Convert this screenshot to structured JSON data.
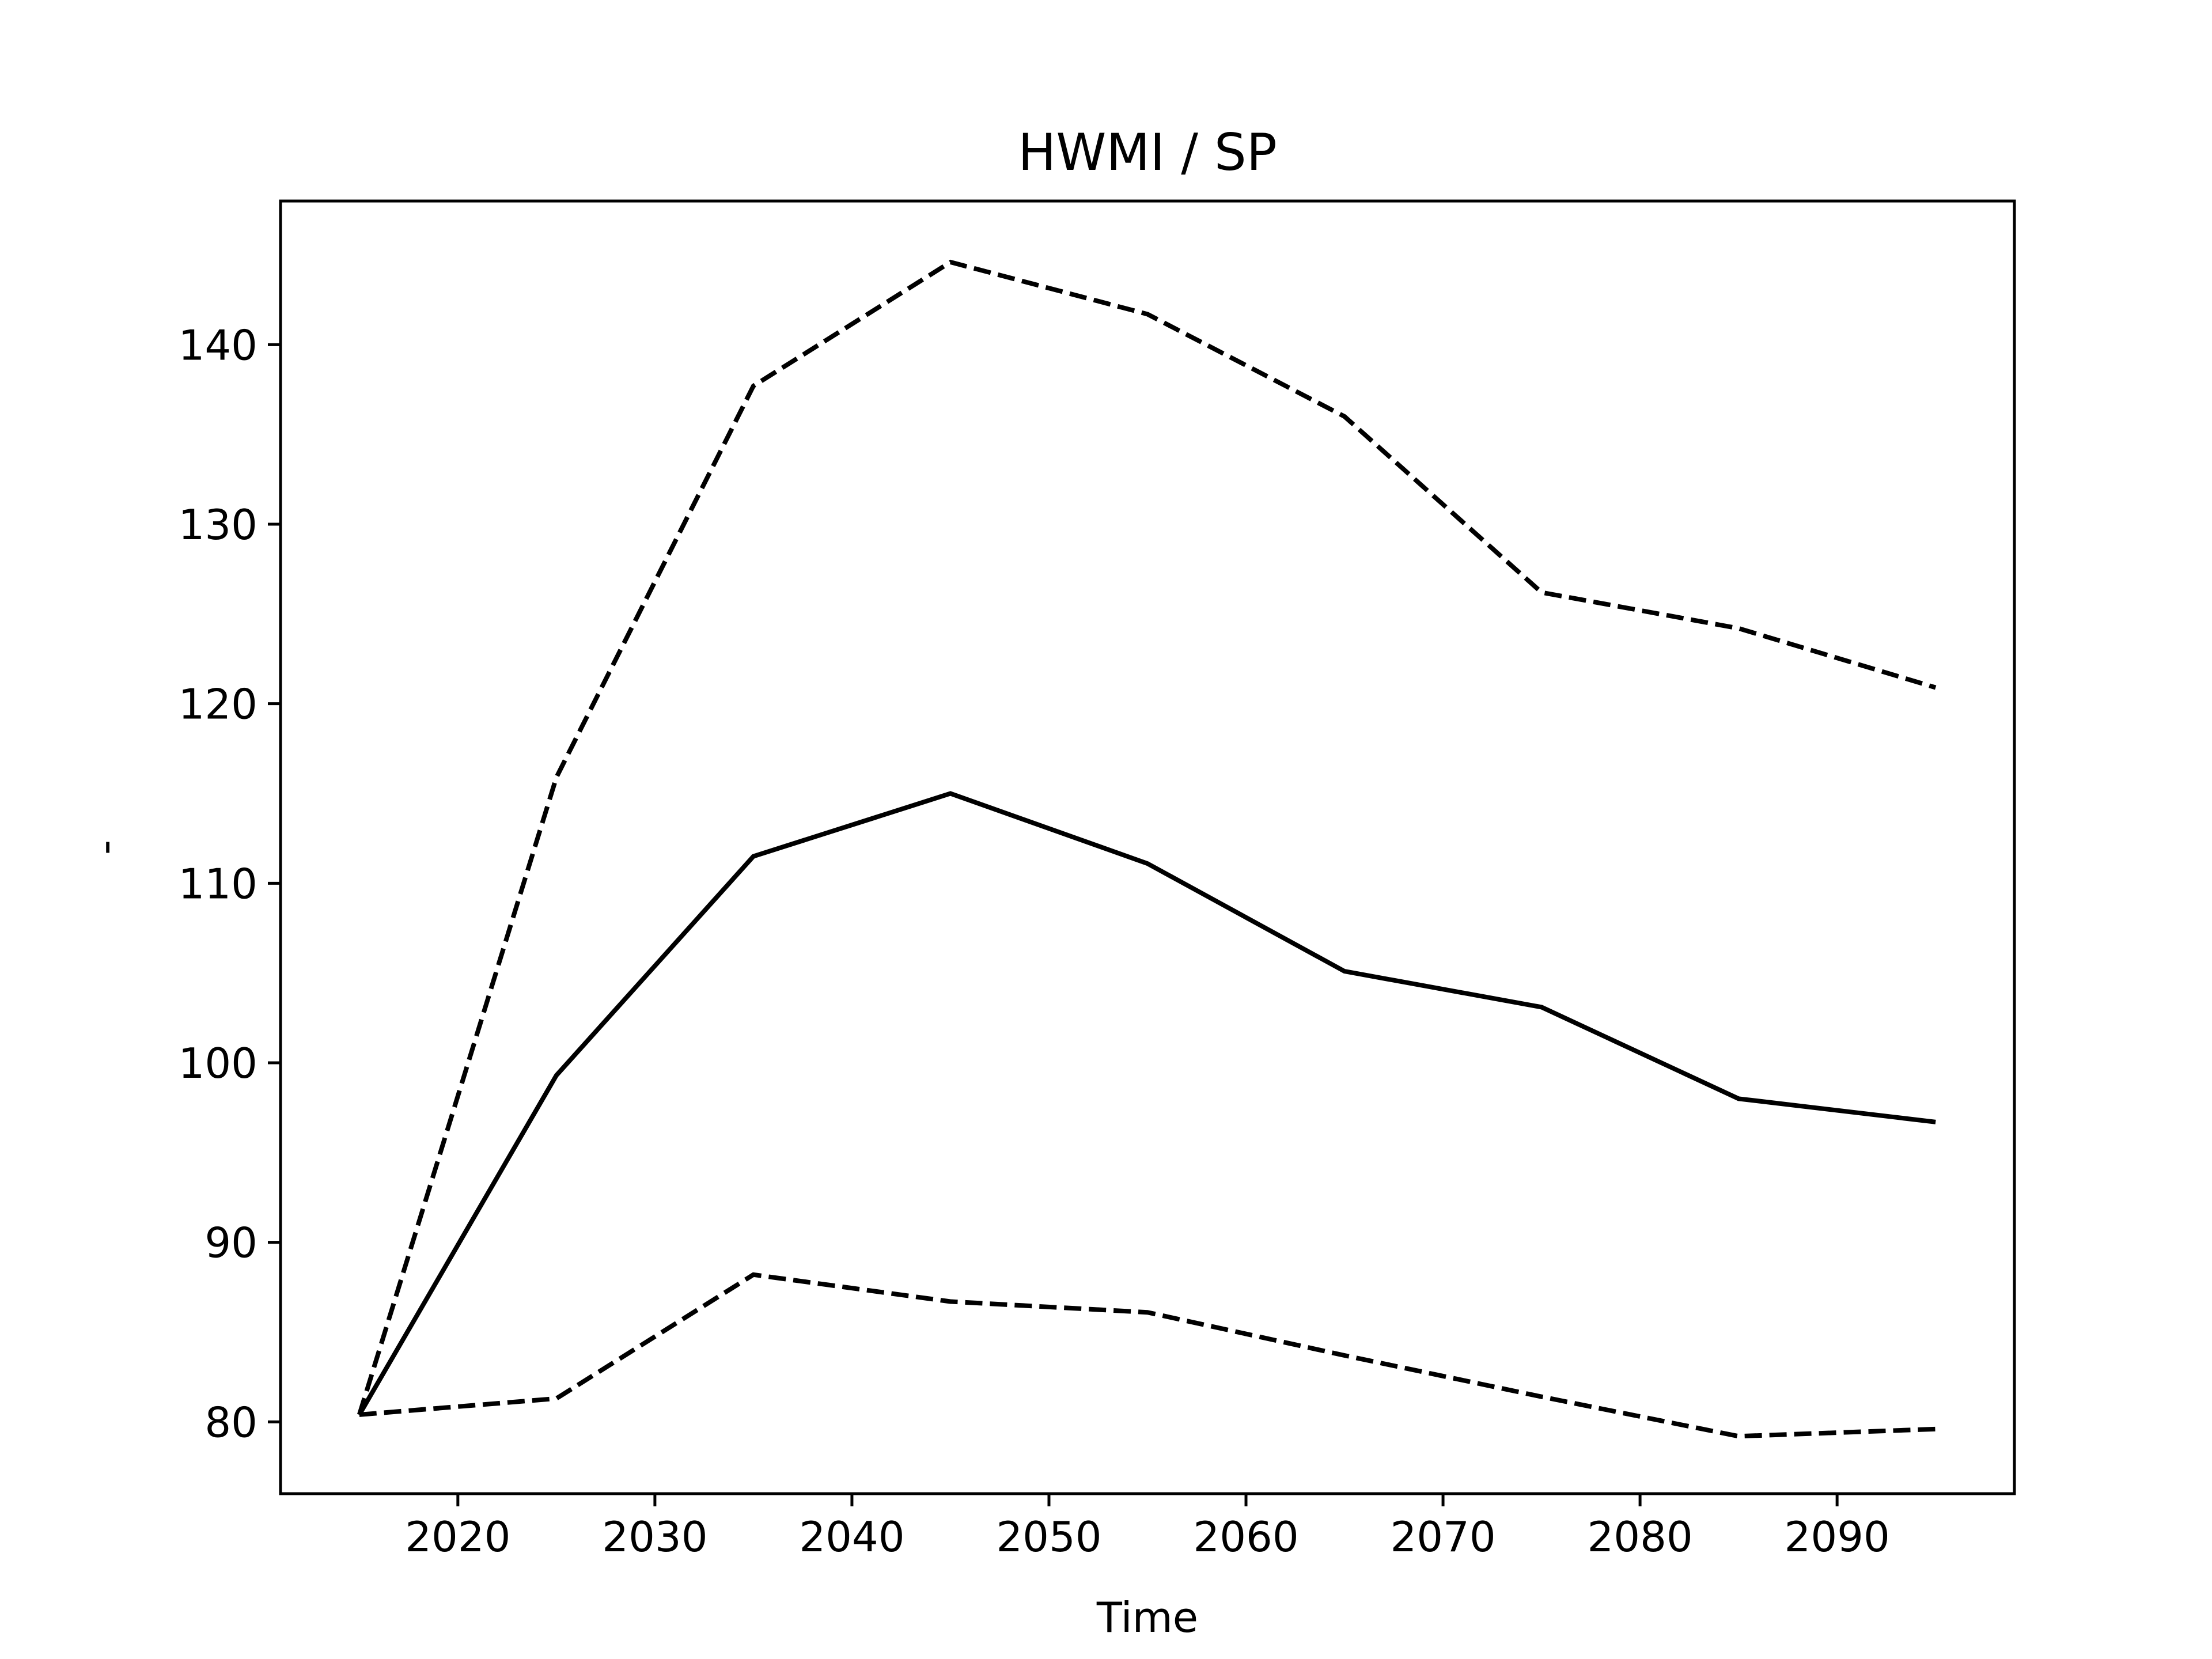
{
  "chart_data": {
    "type": "line",
    "title": "HWMI / SP",
    "xlabel": "Time",
    "ylabel": "-",
    "x": [
      2015,
      2025,
      2035,
      2045,
      2055,
      2065,
      2075,
      2085,
      2095
    ],
    "series": [
      {
        "style": "solid",
        "color": "#000000",
        "values": [
          80.4,
          99.3,
          111.5,
          115.0,
          111.1,
          105.1,
          103.1,
          98.0,
          96.7
        ]
      },
      {
        "style": "dashed",
        "color": "#000000",
        "values": [
          80.4,
          115.9,
          137.7,
          144.6,
          141.7,
          136.0,
          126.2,
          124.2,
          120.9
        ]
      },
      {
        "style": "dashed",
        "color": "#000000",
        "values": [
          80.4,
          81.3,
          88.2,
          86.7,
          86.1,
          83.7,
          81.4,
          79.2,
          79.6
        ]
      }
    ],
    "xlim": [
      2011,
      2099
    ],
    "ylim": [
      76,
      148
    ],
    "xticks": [
      2020,
      2030,
      2040,
      2050,
      2060,
      2070,
      2080,
      2090
    ],
    "yticks": [
      80,
      90,
      100,
      110,
      120,
      130,
      140
    ],
    "grid": false,
    "legend": "none"
  }
}
